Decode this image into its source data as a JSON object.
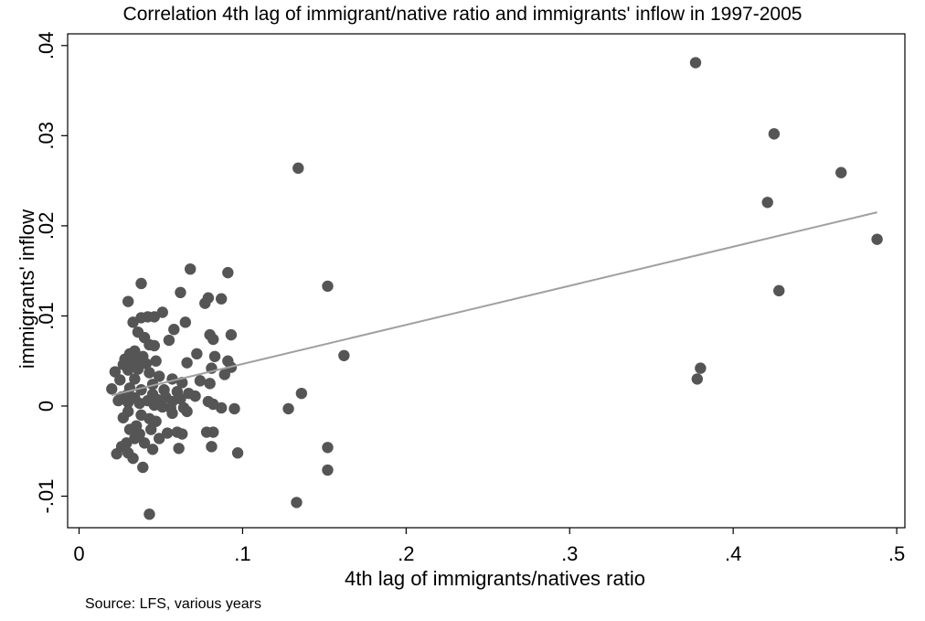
{
  "chart_data": {
    "type": "scatter",
    "title": "Correlation 4th lag of immigrant/native ratio and immigrants' inflow in 1997-2005",
    "xlabel": "4th lag of immigrants/natives ratio",
    "ylabel": "immigrants' inflow",
    "note": "Source: LFS, various years",
    "xlim": [
      -0.007,
      0.505
    ],
    "ylim": [
      -0.0135,
      0.0413
    ],
    "x_ticks": [
      0,
      0.1,
      0.2,
      0.3,
      0.4,
      0.5
    ],
    "x_tick_labels": [
      "0",
      ".1",
      ".2",
      ".3",
      ".4",
      ".5"
    ],
    "y_ticks": [
      -0.01,
      0,
      0.01,
      0.02,
      0.03,
      0.04
    ],
    "y_tick_labels": [
      "-.01",
      "0",
      ".01",
      ".02",
      ".03",
      ".04"
    ],
    "grid": false,
    "legend": "none",
    "colors": {
      "points": "#555555",
      "fit_line": "#a0a0a0",
      "axes": "#000000"
    },
    "fit_line": {
      "x": [
        0.02,
        0.488
      ],
      "y": [
        0.0012,
        0.0215
      ]
    },
    "points": [
      [
        0.377,
        0.0381
      ],
      [
        0.425,
        0.0302
      ],
      [
        0.466,
        0.0259
      ],
      [
        0.421,
        0.0226
      ],
      [
        0.488,
        0.0185
      ],
      [
        0.428,
        0.0128
      ],
      [
        0.38,
        0.0042
      ],
      [
        0.378,
        0.003
      ],
      [
        0.134,
        0.0264
      ],
      [
        0.152,
        0.0133
      ],
      [
        0.162,
        0.0056
      ],
      [
        0.136,
        0.0014
      ],
      [
        0.128,
        -0.0003
      ],
      [
        0.152,
        -0.0046
      ],
      [
        0.152,
        -0.0071
      ],
      [
        0.133,
        -0.0107
      ],
      [
        0.043,
        -0.012
      ],
      [
        0.068,
        0.0152
      ],
      [
        0.091,
        0.0148
      ],
      [
        0.038,
        0.0136
      ],
      [
        0.062,
        0.0126
      ],
      [
        0.079,
        0.012
      ],
      [
        0.087,
        0.0119
      ],
      [
        0.03,
        0.0116
      ],
      [
        0.077,
        0.0114
      ],
      [
        0.051,
        0.0104
      ],
      [
        0.042,
        0.0099
      ],
      [
        0.038,
        0.0098
      ],
      [
        0.046,
        0.0099
      ],
      [
        0.033,
        0.0093
      ],
      [
        0.065,
        0.0093
      ],
      [
        0.058,
        0.0085
      ],
      [
        0.036,
        0.0082
      ],
      [
        0.055,
        0.0073
      ],
      [
        0.04,
        0.0076
      ],
      [
        0.08,
        0.0079
      ],
      [
        0.093,
        0.0079
      ],
      [
        0.082,
        0.0074
      ],
      [
        0.043,
        0.0068
      ],
      [
        0.046,
        0.0067
      ],
      [
        0.031,
        0.0058
      ],
      [
        0.034,
        0.0061
      ],
      [
        0.039,
        0.0055
      ],
      [
        0.028,
        0.0052
      ],
      [
        0.035,
        0.005
      ],
      [
        0.027,
        0.0046
      ],
      [
        0.033,
        0.0047
      ],
      [
        0.041,
        0.0047
      ],
      [
        0.047,
        0.005
      ],
      [
        0.072,
        0.0058
      ],
      [
        0.083,
        0.0055
      ],
      [
        0.091,
        0.005
      ],
      [
        0.093,
        0.0043
      ],
      [
        0.081,
        0.0042
      ],
      [
        0.089,
        0.0035
      ],
      [
        0.066,
        0.0048
      ],
      [
        0.022,
        0.0038
      ],
      [
        0.03,
        0.004
      ],
      [
        0.036,
        0.0041
      ],
      [
        0.043,
        0.0037
      ],
      [
        0.049,
        0.0033
      ],
      [
        0.057,
        0.003
      ],
      [
        0.063,
        0.0026
      ],
      [
        0.074,
        0.0028
      ],
      [
        0.08,
        0.0025
      ],
      [
        0.034,
        0.003
      ],
      [
        0.045,
        0.0024
      ],
      [
        0.025,
        0.0029
      ],
      [
        0.031,
        0.002
      ],
      [
        0.038,
        0.0018
      ],
      [
        0.052,
        0.0018
      ],
      [
        0.06,
        0.0016
      ],
      [
        0.067,
        0.0014
      ],
      [
        0.02,
        0.0019
      ],
      [
        0.026,
        0.001
      ],
      [
        0.029,
        0.0012
      ],
      [
        0.034,
        0.0009
      ],
      [
        0.045,
        0.0013
      ],
      [
        0.048,
        0.0007
      ],
      [
        0.053,
        0.001
      ],
      [
        0.057,
        0.0005
      ],
      [
        0.062,
        0.0008
      ],
      [
        0.071,
        0.0011
      ],
      [
        0.079,
        0.0005
      ],
      [
        0.082,
        0.0002
      ],
      [
        0.024,
        0.0006
      ],
      [
        0.03,
        0.0004
      ],
      [
        0.037,
        0.0003
      ],
      [
        0.042,
        0.0006
      ],
      [
        0.046,
        0.0001
      ],
      [
        0.051,
        -0.0001
      ],
      [
        0.064,
        -0.0002
      ],
      [
        0.087,
        -0.0002
      ],
      [
        0.095,
        -0.0003
      ],
      [
        0.03,
        -0.0006
      ],
      [
        0.038,
        -0.001
      ],
      [
        0.057,
        -0.0008
      ],
      [
        0.066,
        -0.0006
      ],
      [
        0.043,
        -0.0014
      ],
      [
        0.047,
        -0.0017
      ],
      [
        0.027,
        -0.0013
      ],
      [
        0.031,
        -0.0026
      ],
      [
        0.037,
        -0.0031
      ],
      [
        0.044,
        -0.0026
      ],
      [
        0.049,
        -0.0036
      ],
      [
        0.054,
        -0.003
      ],
      [
        0.06,
        -0.0029
      ],
      [
        0.063,
        -0.0031
      ],
      [
        0.078,
        -0.0029
      ],
      [
        0.082,
        -0.0029
      ],
      [
        0.034,
        -0.0036
      ],
      [
        0.04,
        -0.0041
      ],
      [
        0.029,
        -0.0041
      ],
      [
        0.026,
        -0.0045
      ],
      [
        0.081,
        -0.0045
      ],
      [
        0.061,
        -0.0047
      ],
      [
        0.045,
        -0.0048
      ],
      [
        0.023,
        -0.0053
      ],
      [
        0.03,
        -0.0052
      ],
      [
        0.033,
        -0.0058
      ],
      [
        0.097,
        -0.0052
      ],
      [
        0.039,
        -0.0068
      ],
      [
        0.028,
        -0.0044
      ],
      [
        0.035,
        -0.0022
      ],
      [
        0.056,
        -0.0002
      ]
    ]
  }
}
